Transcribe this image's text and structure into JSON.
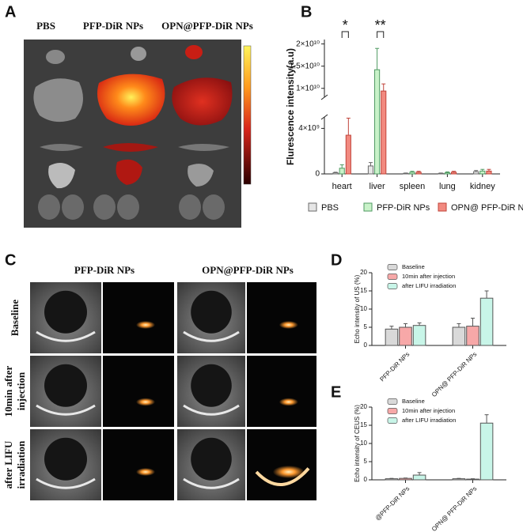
{
  "figure": {
    "panel_labels": [
      "A",
      "B",
      "C",
      "D",
      "E"
    ],
    "panel_a": {
      "groups": [
        "PBS",
        "PFP-DiR NPs",
        "OPN@PFP-DiR NPs"
      ]
    },
    "panel_c": {
      "columns": [
        "PFP-DiR NPs",
        "OPN@PFP-DiR NPs"
      ],
      "rows": [
        {
          "lines": [
            "Baseline"
          ]
        },
        {
          "lines": [
            "10min after",
            "injection"
          ]
        },
        {
          "lines": [
            "after LIFU",
            "irradiation"
          ]
        }
      ]
    }
  },
  "chart_data": [
    {
      "type": "bar",
      "y_label": "Flurescence intensity(a.u)",
      "categories": [
        "heart",
        "liver",
        "spleen",
        "lung",
        "kidney"
      ],
      "series": [
        {
          "name": "PBS",
          "color": "#e6e6e6",
          "edge": "#6a6a6a",
          "values": [
            100000000,
            700000000,
            50000000,
            50000000,
            200000000
          ],
          "errors": [
            50000000,
            300000000,
            30000000,
            30000000,
            100000000
          ]
        },
        {
          "name": "PFP-DiR NPs",
          "color": "#c9f2c9",
          "edge": "#4f9a62",
          "values": [
            500000000,
            14200000000,
            150000000,
            100000000,
            250000000
          ],
          "errors": [
            300000000,
            4800000000,
            80000000,
            80000000,
            150000000
          ]
        },
        {
          "name": "OPN@ PFP-DiR NPs",
          "color": "#f28a80",
          "edge": "#c0443a",
          "values": [
            3400000000,
            9400000000,
            150000000,
            150000000,
            250000000
          ],
          "errors": [
            1500000000,
            1600000000,
            80000000,
            80000000,
            150000000
          ]
        }
      ],
      "ylim": [
        0,
        21000000000
      ],
      "y_break": [
        5000000000,
        8000000000
      ],
      "yticks": [
        0,
        {
          "value": 4000000000,
          "label": "4×10⁹"
        },
        {
          "value": 10000000000,
          "label": "1×10¹⁰"
        },
        {
          "value": 15000000000,
          "label": "1.5×10¹⁰"
        },
        {
          "value": 20000000000,
          "label": "2×10¹⁰"
        }
      ],
      "annotations": [
        "*",
        "**"
      ],
      "legend": "bottom"
    },
    {
      "type": "bar",
      "y_label": "Echo intensity of US (%)",
      "categories": [
        "PFP-DiR NPs",
        "OPN@ PFP-DiR NPs"
      ],
      "series": [
        {
          "name": "Baseline",
          "color": "#d9d9d9",
          "edge": "#555555",
          "values": [
            4.5,
            5.0
          ],
          "errors": [
            0.8,
            1.0
          ]
        },
        {
          "name": "10min after injection",
          "color": "#f7a8a8",
          "edge": "#555555",
          "values": [
            5.0,
            5.3
          ],
          "errors": [
            1.0,
            2.2
          ]
        },
        {
          "name": "after LIFU irradiation",
          "color": "#c8f5e8",
          "edge": "#555555",
          "values": [
            5.5,
            13.0
          ],
          "errors": [
            0.7,
            2.0
          ]
        }
      ],
      "ylim": [
        0,
        20
      ],
      "yticks": [
        0,
        5,
        10,
        15,
        20
      ],
      "legend": "upper left"
    },
    {
      "type": "bar",
      "y_label": "Echo intensity of CEUS (%)",
      "categories": [
        "@PFP-DiR NPs",
        "OPN@ PFP-DiR NPs"
      ],
      "series": [
        {
          "name": "Baseline",
          "color": "#d9d9d9",
          "edge": "#555555",
          "values": [
            0.3,
            0.3
          ],
          "errors": [
            0.1,
            0.1
          ]
        },
        {
          "name": "10min after injection",
          "color": "#f7a8a8",
          "edge": "#555555",
          "values": [
            0.4,
            0.2
          ],
          "errors": [
            0.1,
            0.1
          ]
        },
        {
          "name": "after LIFU irradiation",
          "color": "#c8f5e8",
          "edge": "#555555",
          "values": [
            1.3,
            15.6
          ],
          "errors": [
            0.7,
            2.3
          ]
        }
      ],
      "ylim": [
        0,
        20
      ],
      "yticks": [
        0,
        5,
        10,
        15,
        20
      ],
      "legend": "upper left"
    }
  ]
}
